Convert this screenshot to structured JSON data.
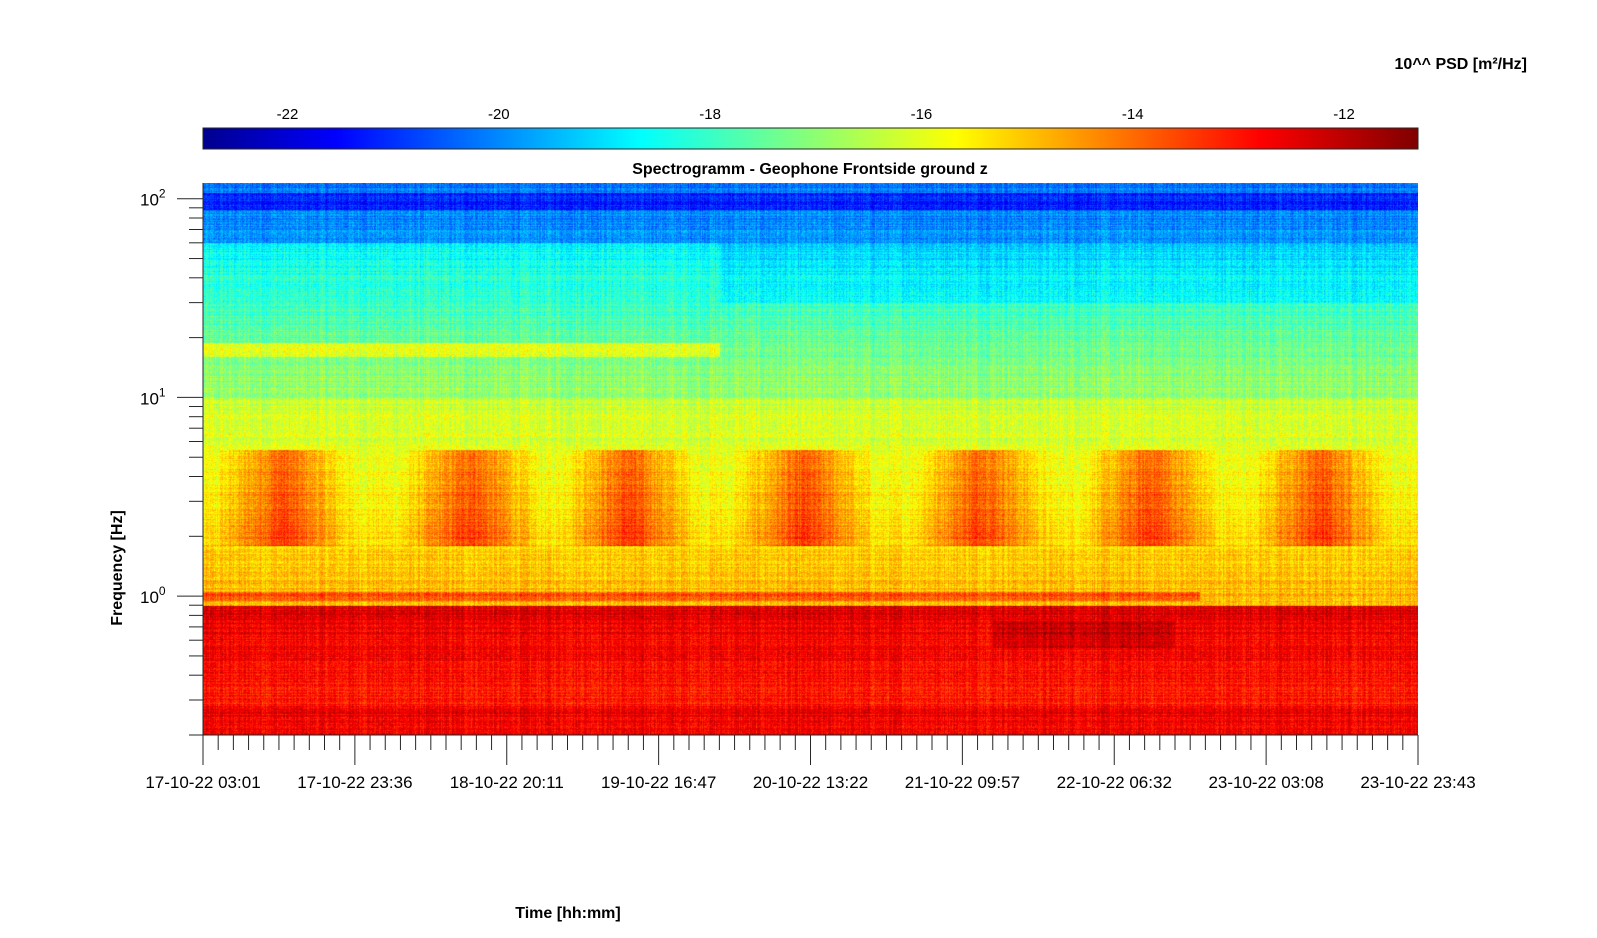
{
  "chart_data": {
    "type": "heatmap",
    "title": "Spectrogramm - Geophone Frontside ground z",
    "xlabel": "Time [hh:mm]",
    "ylabel": "Frequency [Hz]",
    "y_scale": "log",
    "ylim": [
      0.2,
      120
    ],
    "y_ticks": [
      {
        "value": 1,
        "base": "10",
        "exp": "0"
      },
      {
        "value": 10,
        "base": "10",
        "exp": "1"
      },
      {
        "value": 100,
        "base": "10",
        "exp": "2"
      }
    ],
    "x_tick_labels": [
      "17-10-22 03:01",
      "17-10-22 23:36",
      "18-10-22 20:11",
      "19-10-22 16:47",
      "20-10-22 13:22",
      "21-10-22 09:57",
      "22-10-22 06:32",
      "23-10-22 03:08",
      "23-10-22 23:43"
    ],
    "colorbar": {
      "label": "10^^ PSD [m²/Hz]",
      "range": [
        -22.8,
        -11.3
      ],
      "ticks": [
        "-22",
        "-20",
        "-18",
        "-16",
        "-14",
        "-12"
      ],
      "tick_values": [
        -22,
        -20,
        -18,
        -16,
        -14,
        -12
      ],
      "colormap": "jet"
    },
    "features": {
      "peak_band_hz": [
        2.5,
        4
      ],
      "peak_band_value": -13.5,
      "line_1hz_value": -13,
      "shift_time_fraction": 0.425,
      "low_freq_value": -12
    }
  }
}
